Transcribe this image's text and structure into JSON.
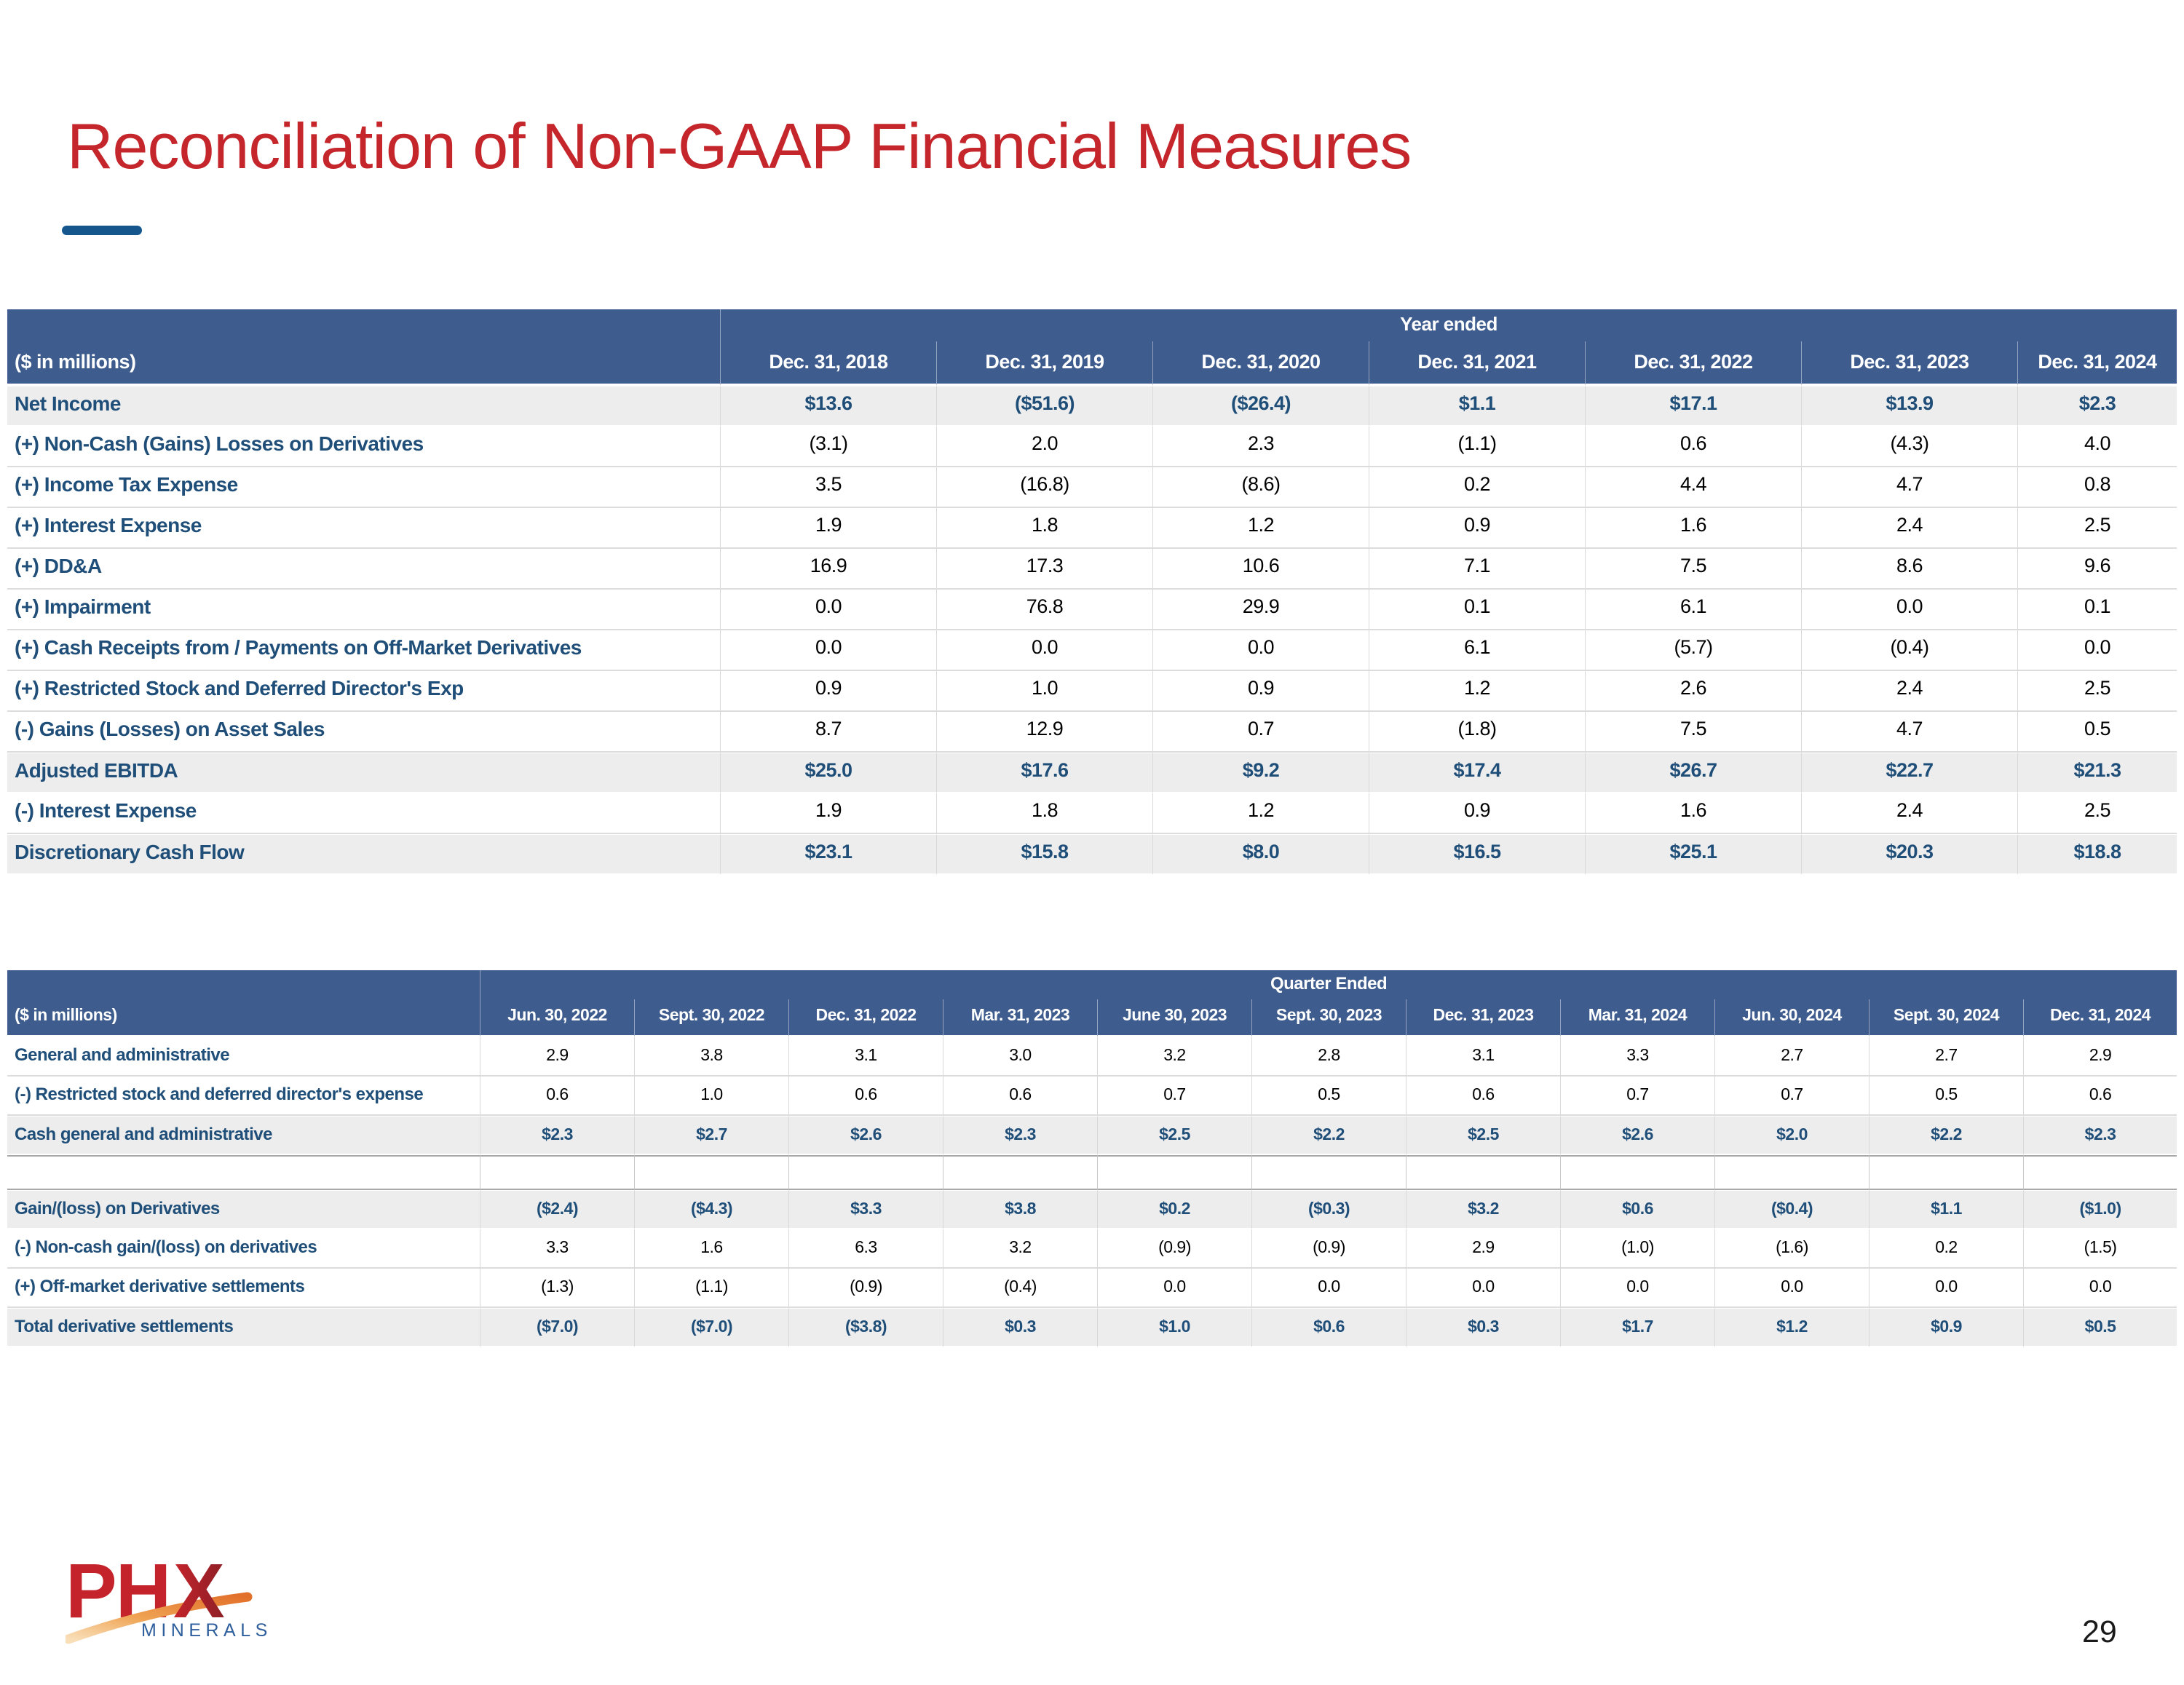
{
  "slide": {
    "title": "Reconciliation of Non-GAAP Financial Measures",
    "page_number": "29"
  },
  "logo": {
    "ph": "PH",
    "x": "X",
    "minerals": "MINERALS"
  },
  "colors": {
    "title_red": "#C5262C",
    "header_blue": "#3E5C8E",
    "navy": "#1F4E79",
    "band_gray": "#EDEDED",
    "grid_gray": "#D9D9D9",
    "dash_blue": "#15568D",
    "logo_red": "#C5232B",
    "logo_maroon": "#8E1F26",
    "logo_orange": "#E2702A",
    "minerals_blue": "#2E5E9C",
    "page_black": "#1A1A1A"
  },
  "table_year": {
    "group_header": "Year ended",
    "unit_label": "($ in millions)",
    "columns": [
      "Dec. 31, 2018",
      "Dec. 31, 2019",
      "Dec. 31, 2020",
      "Dec. 31, 2021",
      "Dec. 31, 2022",
      "Dec. 31, 2023",
      "Dec. 31, 2024"
    ],
    "rows": [
      {
        "label": "Net Income",
        "style": "total",
        "values": [
          "$13.6",
          "($51.6)",
          "($26.4)",
          "$1.1",
          "$17.1",
          "$13.9",
          "$2.3"
        ]
      },
      {
        "label": "(+) Non-Cash (Gains) Losses on Derivatives",
        "style": "normal",
        "values": [
          "(3.1)",
          "2.0",
          "2.3",
          "(1.1)",
          "0.6",
          "(4.3)",
          "4.0"
        ]
      },
      {
        "label": "(+) Income Tax Expense",
        "style": "normal",
        "values": [
          "3.5",
          "(16.8)",
          "(8.6)",
          "0.2",
          "4.4",
          "4.7",
          "0.8"
        ]
      },
      {
        "label": "(+) Interest Expense",
        "style": "normal",
        "values": [
          "1.9",
          "1.8",
          "1.2",
          "0.9",
          "1.6",
          "2.4",
          "2.5"
        ]
      },
      {
        "label": "(+) DD&A",
        "style": "normal",
        "values": [
          "16.9",
          "17.3",
          "10.6",
          "7.1",
          "7.5",
          "8.6",
          "9.6"
        ]
      },
      {
        "label": "(+) Impairment",
        "style": "normal",
        "values": [
          "0.0",
          "76.8",
          "29.9",
          "0.1",
          "6.1",
          "0.0",
          "0.1"
        ]
      },
      {
        "label": "(+) Cash Receipts from / Payments on Off-Market Derivatives",
        "style": "normal",
        "values": [
          "0.0",
          "0.0",
          "0.0",
          "6.1",
          "(5.7)",
          "(0.4)",
          "0.0"
        ]
      },
      {
        "label": "(+) Restricted Stock and Deferred Director's Exp",
        "style": "normal",
        "values": [
          "0.9",
          "1.0",
          "0.9",
          "1.2",
          "2.6",
          "2.4",
          "2.5"
        ]
      },
      {
        "label": "(-) Gains (Losses) on Asset Sales",
        "style": "normal",
        "values": [
          "8.7",
          "12.9",
          "0.7",
          "(1.8)",
          "7.5",
          "4.7",
          "0.5"
        ]
      },
      {
        "label": "Adjusted EBITDA",
        "style": "total",
        "values": [
          "$25.0",
          "$17.6",
          "$9.2",
          "$17.4",
          "$26.7",
          "$22.7",
          "$21.3"
        ]
      },
      {
        "label": "(-) Interest Expense",
        "style": "normal",
        "values": [
          "1.9",
          "1.8",
          "1.2",
          "0.9",
          "1.6",
          "2.4",
          "2.5"
        ]
      },
      {
        "label": "Discretionary Cash Flow",
        "style": "total",
        "values": [
          "$23.1",
          "$15.8",
          "$8.0",
          "$16.5",
          "$25.1",
          "$20.3",
          "$18.8"
        ]
      }
    ]
  },
  "table_quarter": {
    "group_header": "Quarter Ended",
    "unit_label": "($ in millions)",
    "columns": [
      "Jun. 30, 2022",
      "Sept. 30, 2022",
      "Dec. 31, 2022",
      "Mar. 31, 2023",
      "June 30, 2023",
      "Sept. 30, 2023",
      "Dec. 31, 2023",
      "Mar. 31, 2024",
      "Jun. 30, 2024",
      "Sept. 30, 2024",
      "Dec. 31, 2024"
    ],
    "rows": [
      {
        "label": "General and administrative",
        "style": "normal",
        "values": [
          "2.9",
          "3.8",
          "3.1",
          "3.0",
          "3.2",
          "2.8",
          "3.1",
          "3.3",
          "2.7",
          "2.7",
          "2.9"
        ]
      },
      {
        "label": "(-) Restricted stock and deferred director's expense",
        "style": "normal",
        "values": [
          "0.6",
          "1.0",
          "0.6",
          "0.6",
          "0.7",
          "0.5",
          "0.6",
          "0.7",
          "0.7",
          "0.5",
          "0.6"
        ]
      },
      {
        "label": "Cash general and administrative",
        "style": "total",
        "values": [
          "$2.3",
          "$2.7",
          "$2.6",
          "$2.3",
          "$2.5",
          "$2.2",
          "$2.5",
          "$2.6",
          "$2.0",
          "$2.2",
          "$2.3"
        ]
      },
      {
        "label": "",
        "style": "spacer",
        "values": [
          "",
          "",
          "",
          "",
          "",
          "",
          "",
          "",
          "",
          "",
          ""
        ]
      },
      {
        "label": "Gain/(loss) on Derivatives",
        "style": "total",
        "values": [
          "($2.4)",
          "($4.3)",
          "$3.3",
          "$3.8",
          "$0.2",
          "($0.3)",
          "$3.2",
          "$0.6",
          "($0.4)",
          "$1.1",
          "($1.0)"
        ]
      },
      {
        "label": "(-) Non-cash gain/(loss) on derivatives",
        "style": "normal",
        "values": [
          "3.3",
          "1.6",
          "6.3",
          "3.2",
          "(0.9)",
          "(0.9)",
          "2.9",
          "(1.0)",
          "(1.6)",
          "0.2",
          "(1.5)"
        ]
      },
      {
        "label": "(+) Off-market derivative settlements",
        "style": "normal",
        "values": [
          "(1.3)",
          "(1.1)",
          "(0.9)",
          "(0.4)",
          "0.0",
          "0.0",
          "0.0",
          "0.0",
          "0.0",
          "0.0",
          "0.0"
        ]
      },
      {
        "label": "Total derivative settlements",
        "style": "total",
        "values": [
          "($7.0)",
          "($7.0)",
          "($3.8)",
          "$0.3",
          "$1.0",
          "$0.6",
          "$0.3",
          "$1.7",
          "$1.2",
          "$0.9",
          "$0.5"
        ]
      }
    ]
  }
}
